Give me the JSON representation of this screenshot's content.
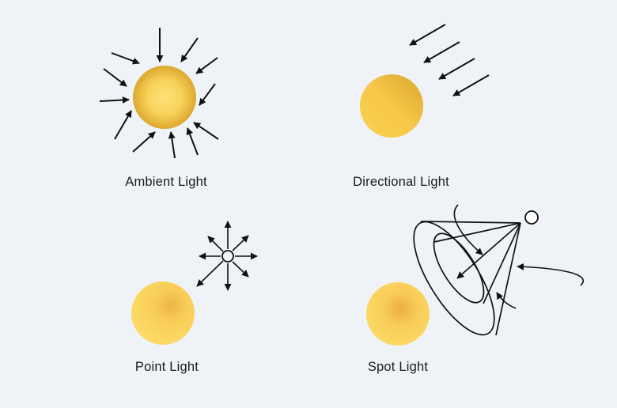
{
  "labels": {
    "ambient": "Ambient Light",
    "directional": "Directional Light",
    "point": "Point Light",
    "spot": "Spot Light"
  },
  "colors": {
    "background": "#eff3f7",
    "sphere_light": "#fde27a",
    "sphere_mid": "#f7c64a",
    "sphere_dark": "#d4a227",
    "ink": "#111111"
  }
}
